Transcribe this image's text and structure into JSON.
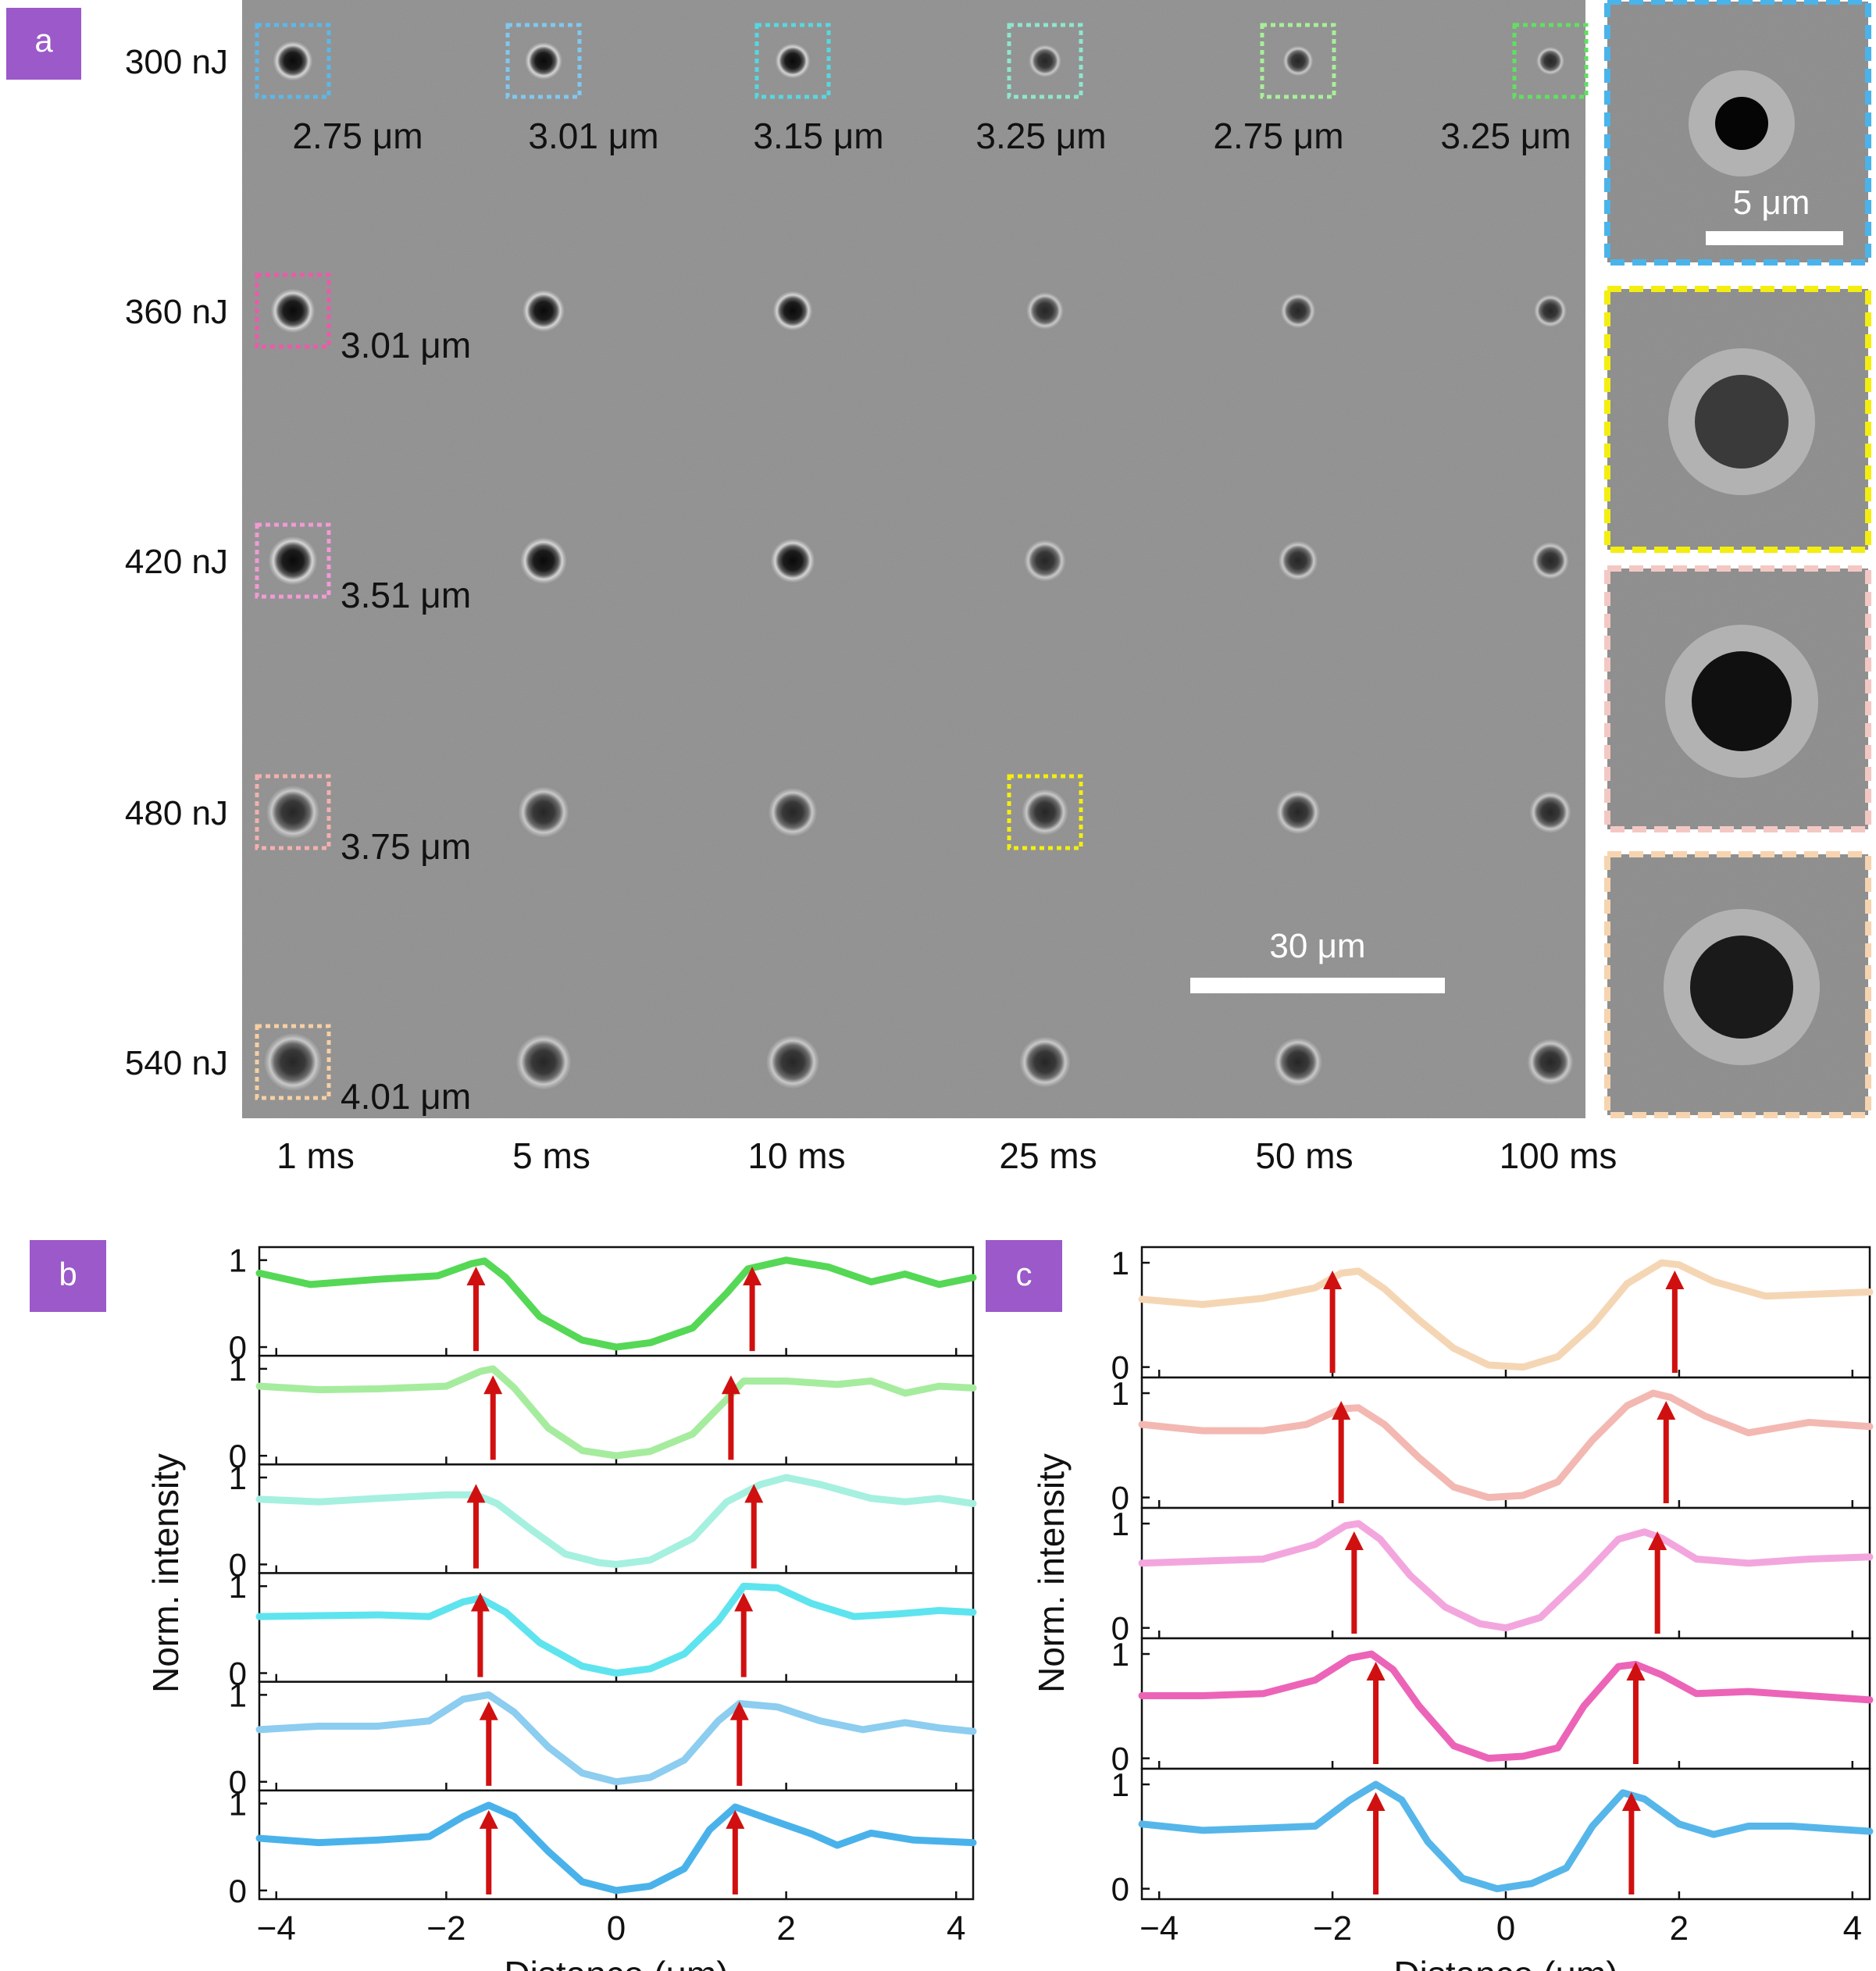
{
  "panel_labels": {
    "a": "a",
    "b": "b",
    "c": "c"
  },
  "colors": {
    "badge": "#9b59c9",
    "arrow": "#d01010",
    "micrograph_bg": "#8e8e8e",
    "scalebar": "#ffffff"
  },
  "panel_a": {
    "energies": [
      "300 nJ",
      "360 nJ",
      "420 nJ",
      "480 nJ",
      "540 nJ"
    ],
    "durations": [
      "1 ms",
      "5 ms",
      "10 ms",
      "25 ms",
      "50 ms",
      "100 ms"
    ],
    "row1_diameters": [
      "2.75 μm",
      "3.01 μm",
      "3.15 μm",
      "3.25 μm",
      "2.75 μm",
      "3.25 μm"
    ],
    "row1_box_colors": [
      "#5bb8ea",
      "#7fc8f0",
      "#56d8e0",
      "#8ee6cc",
      "#a8ee9a",
      "#60e060"
    ],
    "col1_diameters": [
      "3.01 μm",
      "3.51 μm",
      "3.75 μm",
      "4.01 μm"
    ],
    "col1_box_colors": [
      "#ec5aa8",
      "#f29ad4",
      "#f3b0ae",
      "#f6cfa4"
    ],
    "highlight_box_color": "#f3ee10",
    "scalebar_label": "30 μm",
    "inset_border_colors": [
      "#4ab4ea",
      "#f3ee10",
      "#f3c8c4",
      "#f6d4b0"
    ],
    "inset_scalebar_label": "5 μm"
  },
  "chart_data": [
    {
      "type": "line",
      "panel": "b",
      "xlabel": "Distance (μm)",
      "ylabel": "Norm. intensity",
      "xlim": [
        -4.2,
        4.2
      ],
      "xticks": [
        -4,
        -2,
        0,
        2,
        4
      ],
      "ylim": [
        -0.1,
        1.15
      ],
      "yticks": [
        0,
        1
      ],
      "series": [
        {
          "color": "#55d855",
          "x": [
            -4.2,
            -3.6,
            -2.8,
            -2.1,
            -1.7,
            -1.55,
            -1.3,
            -0.9,
            -0.4,
            0,
            0.4,
            0.9,
            1.3,
            1.55,
            2.0,
            2.5,
            3.0,
            3.4,
            3.8,
            4.2
          ],
          "y": [
            0.85,
            0.72,
            0.78,
            0.82,
            0.96,
            0.99,
            0.8,
            0.35,
            0.08,
            0.0,
            0.05,
            0.22,
            0.62,
            0.9,
            1.0,
            0.92,
            0.75,
            0.84,
            0.72,
            0.8
          ],
          "peaks": [
            -1.65,
            1.6
          ]
        },
        {
          "color": "#a6ec9e",
          "x": [
            -4.2,
            -3.5,
            -2.8,
            -2.0,
            -1.6,
            -1.45,
            -1.2,
            -0.8,
            -0.4,
            0,
            0.4,
            0.9,
            1.3,
            1.5,
            2.0,
            2.6,
            3.0,
            3.4,
            3.8,
            4.2
          ],
          "y": [
            0.8,
            0.76,
            0.77,
            0.8,
            0.97,
            1.0,
            0.78,
            0.32,
            0.06,
            0.0,
            0.05,
            0.25,
            0.65,
            0.86,
            0.86,
            0.82,
            0.86,
            0.72,
            0.8,
            0.78
          ],
          "peaks": [
            -1.45,
            1.35
          ]
        },
        {
          "color": "#a6f0e0",
          "x": [
            -4.2,
            -3.5,
            -2.8,
            -2.0,
            -1.65,
            -1.4,
            -1.0,
            -0.6,
            -0.2,
            0,
            0.4,
            0.9,
            1.3,
            1.7,
            2.0,
            2.4,
            3.0,
            3.4,
            3.8,
            4.2
          ],
          "y": [
            0.75,
            0.72,
            0.76,
            0.8,
            0.8,
            0.7,
            0.4,
            0.12,
            0.02,
            0.0,
            0.05,
            0.3,
            0.72,
            0.92,
            1.0,
            0.92,
            0.76,
            0.72,
            0.76,
            0.7
          ],
          "peaks": [
            -1.65,
            1.62
          ]
        },
        {
          "color": "#5ee4ee",
          "x": [
            -4.2,
            -3.5,
            -2.8,
            -2.2,
            -1.8,
            -1.6,
            -1.3,
            -0.9,
            -0.4,
            0,
            0.4,
            0.8,
            1.2,
            1.5,
            1.9,
            2.3,
            2.8,
            3.3,
            3.8,
            4.2
          ],
          "y": [
            0.65,
            0.66,
            0.67,
            0.65,
            0.82,
            0.86,
            0.7,
            0.35,
            0.08,
            0.0,
            0.05,
            0.22,
            0.6,
            1.0,
            0.98,
            0.8,
            0.65,
            0.68,
            0.72,
            0.7
          ],
          "peaks": [
            -1.6,
            1.5
          ]
        },
        {
          "color": "#8ccdf0",
          "x": [
            -4.2,
            -3.5,
            -2.8,
            -2.2,
            -1.8,
            -1.5,
            -1.2,
            -0.8,
            -0.4,
            0,
            0.4,
            0.8,
            1.2,
            1.45,
            1.9,
            2.4,
            2.9,
            3.4,
            3.8,
            4.2
          ],
          "y": [
            0.6,
            0.64,
            0.64,
            0.7,
            0.95,
            1.0,
            0.8,
            0.4,
            0.1,
            0.0,
            0.05,
            0.25,
            0.7,
            0.9,
            0.86,
            0.7,
            0.6,
            0.68,
            0.62,
            0.58
          ],
          "peaks": [
            -1.5,
            1.45
          ]
        },
        {
          "color": "#4ab2ea",
          "x": [
            -4.2,
            -3.5,
            -2.8,
            -2.2,
            -1.8,
            -1.5,
            -1.2,
            -0.8,
            -0.4,
            0,
            0.4,
            0.8,
            1.1,
            1.4,
            1.8,
            2.3,
            2.6,
            3.0,
            3.5,
            4.2
          ],
          "y": [
            0.6,
            0.55,
            0.58,
            0.62,
            0.85,
            0.98,
            0.85,
            0.45,
            0.1,
            0.0,
            0.05,
            0.25,
            0.7,
            0.96,
            0.82,
            0.65,
            0.52,
            0.66,
            0.58,
            0.55
          ],
          "peaks": [
            -1.5,
            1.4
          ]
        }
      ]
    },
    {
      "type": "line",
      "panel": "c",
      "xlabel": "Distance (μm)",
      "ylabel": "Norm. intensity",
      "xlim": [
        -4.2,
        4.2
      ],
      "xticks": [
        -4,
        -2,
        0,
        2,
        4
      ],
      "ylim": [
        -0.1,
        1.15
      ],
      "yticks": [
        0,
        1
      ],
      "series": [
        {
          "color": "#f5d6b4",
          "x": [
            -4.2,
            -3.5,
            -2.8,
            -2.2,
            -1.9,
            -1.7,
            -1.4,
            -1.0,
            -0.6,
            -0.2,
            0.2,
            0.6,
            1.0,
            1.4,
            1.8,
            2.0,
            2.4,
            3.0,
            3.6,
            4.2
          ],
          "y": [
            0.65,
            0.6,
            0.66,
            0.76,
            0.9,
            0.92,
            0.75,
            0.45,
            0.18,
            0.02,
            0.0,
            0.1,
            0.4,
            0.8,
            1.0,
            0.98,
            0.82,
            0.68,
            0.7,
            0.72
          ],
          "peaks": [
            -2.0,
            1.95
          ]
        },
        {
          "color": "#f3b8b2",
          "x": [
            -4.2,
            -3.5,
            -2.8,
            -2.3,
            -1.9,
            -1.7,
            -1.4,
            -1.0,
            -0.6,
            -0.2,
            0.2,
            0.6,
            1.0,
            1.4,
            1.7,
            1.9,
            2.3,
            2.8,
            3.5,
            4.2
          ],
          "y": [
            0.7,
            0.64,
            0.64,
            0.7,
            0.85,
            0.86,
            0.7,
            0.38,
            0.1,
            0.0,
            0.02,
            0.15,
            0.55,
            0.88,
            1.0,
            0.96,
            0.78,
            0.62,
            0.72,
            0.68
          ],
          "peaks": [
            -1.9,
            1.85
          ]
        },
        {
          "color": "#f3a6de",
          "x": [
            -4.2,
            -3.5,
            -2.8,
            -2.2,
            -1.85,
            -1.7,
            -1.45,
            -1.1,
            -0.7,
            -0.3,
            0,
            0.4,
            0.9,
            1.3,
            1.6,
            1.8,
            2.2,
            2.8,
            3.5,
            4.2
          ],
          "y": [
            0.62,
            0.64,
            0.66,
            0.8,
            0.98,
            1.0,
            0.85,
            0.5,
            0.2,
            0.04,
            0.0,
            0.1,
            0.5,
            0.85,
            0.92,
            0.86,
            0.66,
            0.62,
            0.66,
            0.68
          ],
          "peaks": [
            -1.75,
            1.75
          ]
        },
        {
          "color": "#ec64b8",
          "x": [
            -4.2,
            -3.5,
            -2.8,
            -2.2,
            -1.8,
            -1.55,
            -1.3,
            -1.0,
            -0.6,
            -0.2,
            0.2,
            0.6,
            0.9,
            1.3,
            1.5,
            1.8,
            2.2,
            2.8,
            3.5,
            4.2
          ],
          "y": [
            0.6,
            0.6,
            0.62,
            0.75,
            0.96,
            1.0,
            0.85,
            0.5,
            0.12,
            0.0,
            0.02,
            0.1,
            0.5,
            0.88,
            0.9,
            0.8,
            0.62,
            0.64,
            0.6,
            0.56
          ],
          "peaks": [
            -1.5,
            1.5
          ]
        },
        {
          "color": "#56b6ea",
          "x": [
            -4.2,
            -3.5,
            -2.8,
            -2.2,
            -1.8,
            -1.5,
            -1.2,
            -0.9,
            -0.5,
            -0.1,
            0.3,
            0.7,
            1.0,
            1.35,
            1.6,
            2.0,
            2.4,
            2.8,
            3.3,
            4.2
          ],
          "y": [
            0.62,
            0.56,
            0.58,
            0.6,
            0.85,
            1.0,
            0.85,
            0.45,
            0.1,
            0.0,
            0.05,
            0.2,
            0.6,
            0.92,
            0.86,
            0.62,
            0.52,
            0.6,
            0.6,
            0.55
          ],
          "peaks": [
            -1.5,
            1.45
          ]
        }
      ]
    }
  ]
}
